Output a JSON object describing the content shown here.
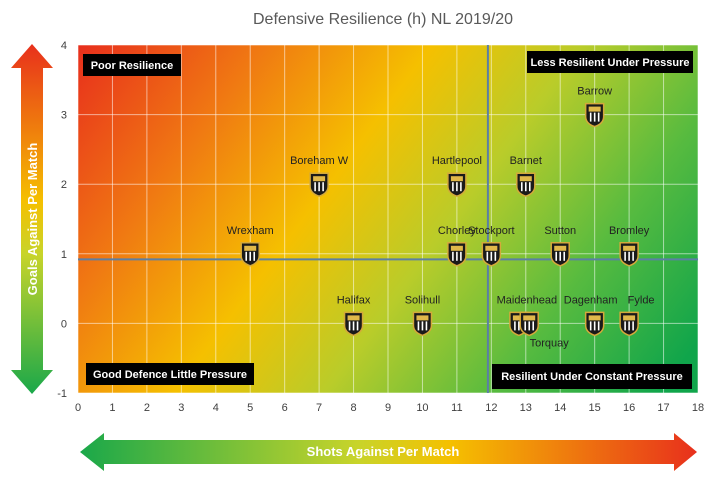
{
  "chart_data": {
    "type": "scatter",
    "title": "Defensive Resilience (h) NL 2019/20",
    "xlabel": "Shots Against Per Match",
    "ylabel": "Goals Against Per Match",
    "xlim": [
      0,
      18
    ],
    "ylim": [
      -1,
      4
    ],
    "x_ticks": [
      "0",
      "1",
      "2",
      "3",
      "4",
      "5",
      "6",
      "7",
      "8",
      "9",
      "10",
      "11",
      "12",
      "13",
      "14",
      "15",
      "16",
      "17",
      "18"
    ],
    "y_ticks": [
      "4",
      "3",
      "2",
      "1",
      "0",
      "-1"
    ],
    "x_ref": 11.9,
    "y_ref": 0.92,
    "points": [
      {
        "name": "Barrow",
        "x": 15,
        "y": 3.0
      },
      {
        "name": "Boreham W",
        "x": 7,
        "y": 2.0
      },
      {
        "name": "Hartlepool",
        "x": 11,
        "y": 2.0
      },
      {
        "name": "Barnet",
        "x": 13,
        "y": 2.0
      },
      {
        "name": "Wrexham",
        "x": 5,
        "y": 1.0
      },
      {
        "name": "Chorley",
        "x": 11,
        "y": 1.0
      },
      {
        "name": "Stockport",
        "x": 12,
        "y": 1.0
      },
      {
        "name": "Sutton",
        "x": 14,
        "y": 1.0
      },
      {
        "name": "Bromley",
        "x": 16,
        "y": 1.0
      },
      {
        "name": "Halifax",
        "x": 8,
        "y": 0.0
      },
      {
        "name": "Solihull",
        "x": 10,
        "y": 0.0
      },
      {
        "name": "Maidenhead",
        "x": 12.8,
        "y": 0.0
      },
      {
        "name": "Torquay",
        "x": 13.1,
        "y": 0.0
      },
      {
        "name": "Dagenham",
        "x": 15,
        "y": 0.0
      },
      {
        "name": "Fylde",
        "x": 16,
        "y": 0.0
      }
    ],
    "quadrants": {
      "top_left": "Poor Resilience",
      "top_right": "Less Resilient Under Pressure",
      "bottom_left": "Good Defence Little Pressure",
      "bottom_right": "Resilient Under Constant Pressure"
    },
    "colors": {
      "hot": "#e8301c",
      "mid": "#f5c000",
      "cool": "#1aa84a",
      "grid": "#ffffff",
      "ref_line": "#5b7fa6"
    }
  }
}
